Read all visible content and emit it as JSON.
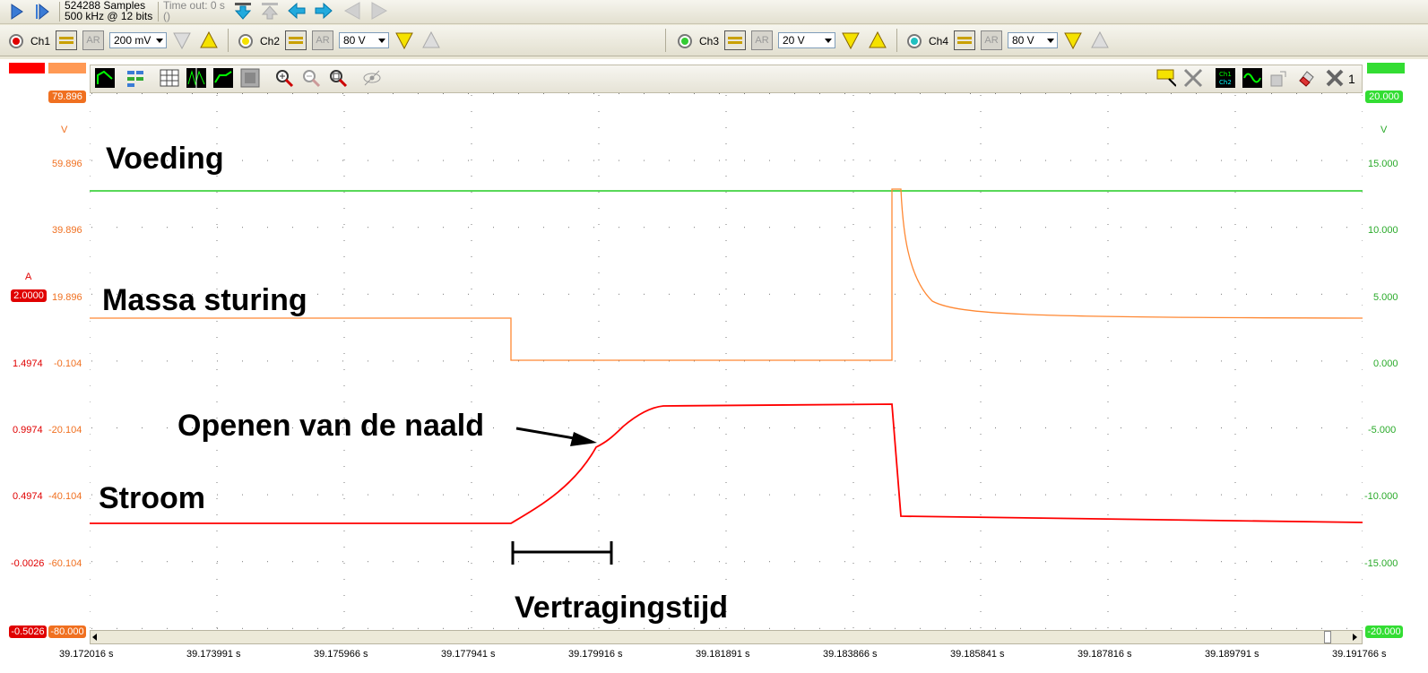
{
  "toolbar": {
    "samples": "524288 Samples",
    "rate": "500 kHz @ 12 bits",
    "empty_parens": "()",
    "timeout": "Time out: 0 s"
  },
  "channels": [
    {
      "label": "Ch1",
      "range": "200 mV",
      "ar": "AR",
      "color": "#e00000"
    },
    {
      "label": "Ch2",
      "range": "80 V",
      "ar": "AR",
      "color": "#f5e200"
    },
    {
      "label": "Ch3",
      "range": "20 V",
      "ar": "AR",
      "color": "#33cc33"
    },
    {
      "label": "Ch4",
      "range": "80 V",
      "ar": "AR",
      "color": "#20c0c0"
    }
  ],
  "left_axis_red": {
    "unit": "A",
    "top_badge": "2.0000",
    "bottom_badge": "-0.5026",
    "ticks": [
      "1.4974",
      "0.9974",
      "0.4974",
      "-0.0026"
    ]
  },
  "left_axis_orange": {
    "unit": "V",
    "top_badge": "79.896",
    "bottom_badge": "-80.000",
    "ticks": [
      "59.896",
      "39.896",
      "19.896",
      "-0.104",
      "-20.104",
      "-40.104",
      "-60.104"
    ]
  },
  "right_axis_green": {
    "unit": "V",
    "top_badge": "20.000",
    "bottom_badge": "-20.000",
    "ticks": [
      "15.000",
      "10.000",
      "5.000",
      "0.000",
      "-5.000",
      "-10.000",
      "-15.000"
    ]
  },
  "time_axis": [
    "39.172016 s",
    "39.173991 s",
    "39.175966 s",
    "39.177941 s",
    "39.179916 s",
    "39.181891 s",
    "39.183866 s",
    "39.185841 s",
    "39.187816 s",
    "39.189791 s",
    "39.191766 s"
  ],
  "annotations": {
    "voeding": "Voeding",
    "massa": "Massa sturing",
    "openen": "Openen van de naald",
    "stroom": "Stroom",
    "vertraging": "Vertragingstijd"
  },
  "plot_toolbar": {
    "right_count": "1"
  }
}
